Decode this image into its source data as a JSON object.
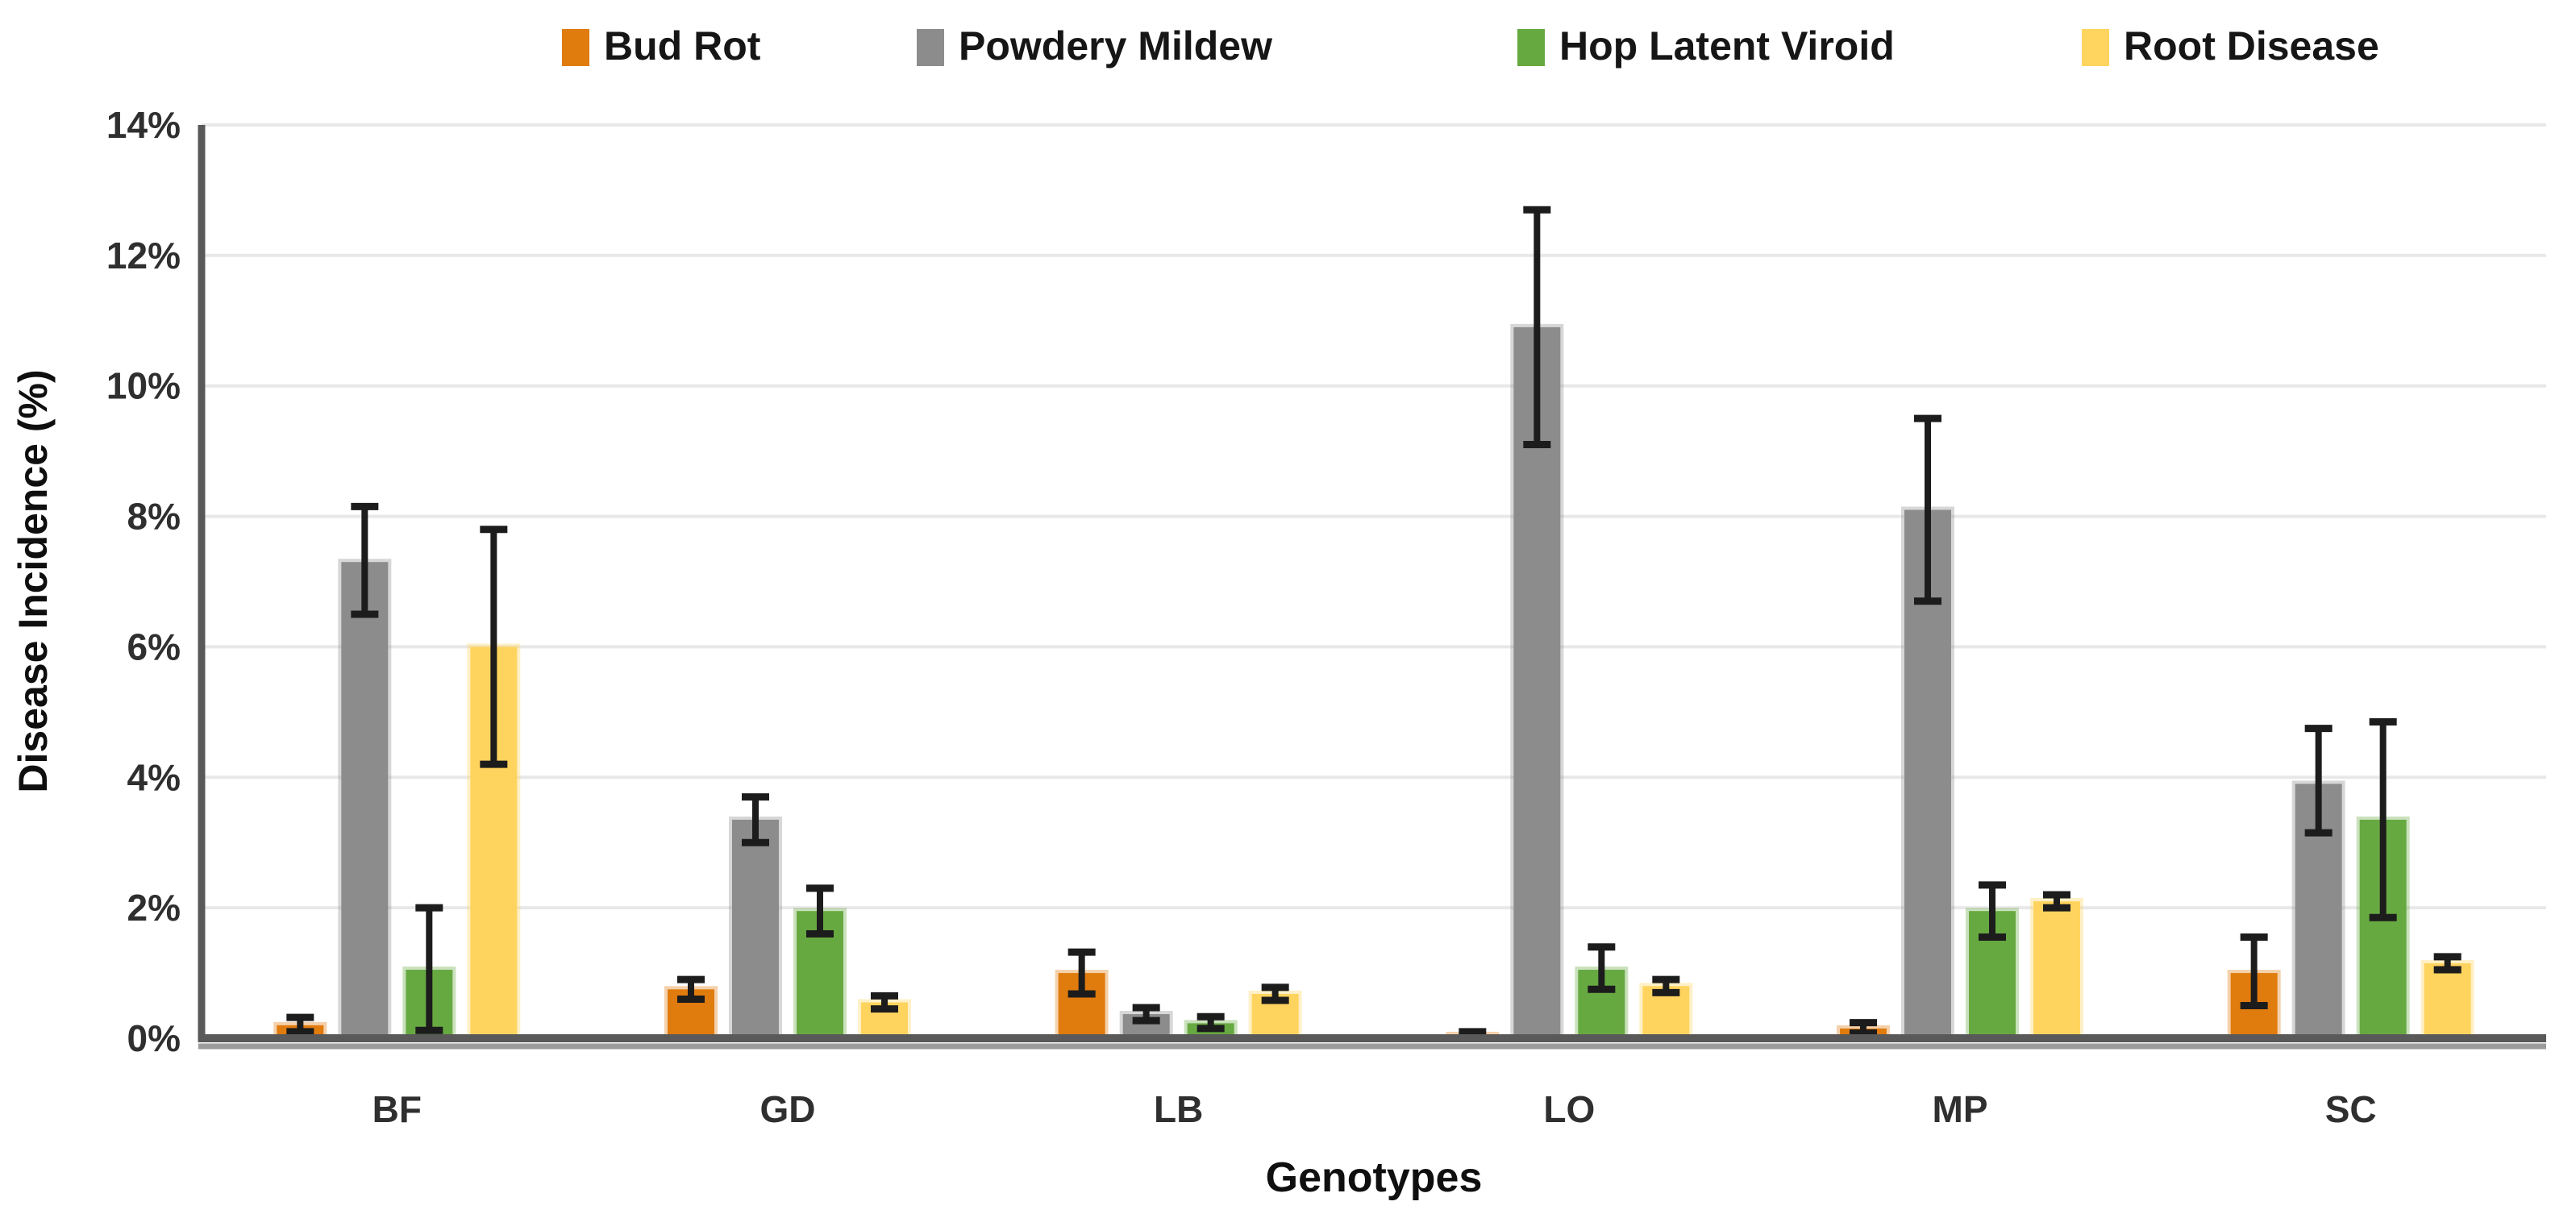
{
  "chart_data": {
    "type": "bar",
    "title": "",
    "xlabel": "Genotypes",
    "ylabel": "Disease Incidence (%)",
    "categories": [
      "BF",
      "GD",
      "LB",
      "LO",
      "MP",
      "SC"
    ],
    "series": [
      {
        "name": "Bud Rot",
        "color": "#E07C0E",
        "values": [
          0.2,
          0.75,
          1.0,
          0.05,
          0.15,
          1.0
        ],
        "error_low": [
          0.1,
          0.6,
          0.68,
          0.0,
          0.08,
          0.5
        ],
        "error_high": [
          0.32,
          0.9,
          1.32,
          0.1,
          0.24,
          1.55
        ]
      },
      {
        "name": "Powdery Mildew",
        "color": "#8C8C8C",
        "values": [
          7.3,
          3.35,
          0.37,
          10.9,
          8.1,
          3.9
        ],
        "error_low": [
          6.5,
          3.0,
          0.27,
          9.1,
          6.7,
          3.15
        ],
        "error_high": [
          8.15,
          3.7,
          0.47,
          12.7,
          9.5,
          4.75
        ]
      },
      {
        "name": "Hop Latent Viroid",
        "color": "#67A941",
        "values": [
          1.05,
          1.95,
          0.23,
          1.05,
          1.95,
          3.35
        ],
        "error_low": [
          0.12,
          1.6,
          0.15,
          0.75,
          1.55,
          1.85
        ],
        "error_high": [
          2.0,
          2.3,
          0.33,
          1.4,
          2.35,
          4.85
        ]
      },
      {
        "name": "Root Disease",
        "color": "#FFD45F",
        "values": [
          6.0,
          0.55,
          0.68,
          0.8,
          2.1,
          1.15
        ],
        "error_low": [
          4.2,
          0.45,
          0.58,
          0.7,
          2.0,
          1.05
        ],
        "error_high": [
          7.8,
          0.65,
          0.78,
          0.9,
          2.2,
          1.25
        ]
      }
    ],
    "y_axis": {
      "min": 0,
      "max": 14,
      "step": 2,
      "tick_labels": [
        "0%",
        "2%",
        "4%",
        "6%",
        "8%",
        "10%",
        "12%",
        "14%"
      ]
    },
    "grid": true,
    "legend_position": "top",
    "style": {
      "gridline_color": "#E8E8E8",
      "axis_color": "#595959",
      "axis_shadow_color": "#9C9C9C",
      "error_bar_color": "#1C1C1C",
      "tick_label_color": "#2F2F2F",
      "background": "#FFFFFF"
    }
  }
}
